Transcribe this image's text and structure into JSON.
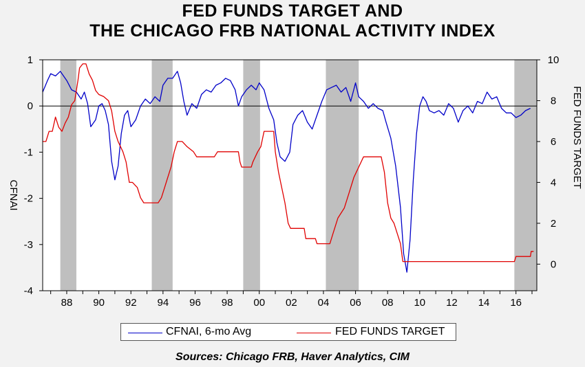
{
  "title_line1": "FED FUNDS TARGET AND",
  "title_line2": "THE CHICAGO FRB NATIONAL ACTIVITY INDEX",
  "source": "Sources:  Chicago FRB, Haver Analytics, CIM",
  "colors": {
    "cfnai": "#0000c8",
    "fedfunds": "#e00000",
    "recession": "#bfbfbf",
    "background": "#f2f2f2",
    "plot": "#ffffff"
  },
  "chart_data": {
    "type": "line",
    "x_tick_labels": [
      "88",
      "90",
      "92",
      "94",
      "96",
      "98",
      "00",
      "02",
      "04",
      "06",
      "08",
      "10",
      "12",
      "14",
      "16"
    ],
    "x_tick_years": [
      1988,
      1990,
      1992,
      1994,
      1996,
      1998,
      2000,
      2002,
      2004,
      2006,
      2008,
      2010,
      2012,
      2014,
      2016
    ],
    "xlim": [
      1986.5,
      2017.3
    ],
    "left_axis": {
      "label": "CFNAI",
      "ticks": [
        1,
        0,
        -1,
        -2,
        -3,
        -4
      ],
      "range": [
        -4,
        1.0
      ]
    },
    "right_axis": {
      "label": "FED FUNDS TARGET",
      "ticks": [
        10,
        8,
        6,
        4,
        2,
        0
      ],
      "range": [
        -1.3,
        10
      ]
    },
    "recessions": [
      [
        1987.6,
        1988.6
      ],
      [
        1993.3,
        1994.6
      ],
      [
        1999.0,
        2000.05
      ],
      [
        2004.15,
        2006.2
      ],
      [
        2015.9,
        2017.3
      ]
    ],
    "zero_line": true,
    "legend_position": "bottom",
    "series": [
      {
        "name": "CFNAI, 6-mo Avg",
        "axis": "left",
        "points": [
          [
            1986.5,
            0.3
          ],
          [
            1986.8,
            0.55
          ],
          [
            1987.0,
            0.7
          ],
          [
            1987.3,
            0.65
          ],
          [
            1987.6,
            0.75
          ],
          [
            1988.0,
            0.55
          ],
          [
            1988.3,
            0.35
          ],
          [
            1988.6,
            0.3
          ],
          [
            1988.9,
            0.15
          ],
          [
            1989.1,
            0.3
          ],
          [
            1989.3,
            0.05
          ],
          [
            1989.5,
            -0.45
          ],
          [
            1989.8,
            -0.3
          ],
          [
            1990.0,
            0.0
          ],
          [
            1990.2,
            0.05
          ],
          [
            1990.4,
            -0.1
          ],
          [
            1990.6,
            -0.4
          ],
          [
            1990.8,
            -1.2
          ],
          [
            1991.0,
            -1.6
          ],
          [
            1991.2,
            -1.3
          ],
          [
            1991.4,
            -0.6
          ],
          [
            1991.6,
            -0.2
          ],
          [
            1991.8,
            -0.1
          ],
          [
            1992.0,
            -0.45
          ],
          [
            1992.3,
            -0.3
          ],
          [
            1992.6,
            0.0
          ],
          [
            1992.9,
            0.15
          ],
          [
            1993.2,
            0.05
          ],
          [
            1993.5,
            0.2
          ],
          [
            1993.8,
            0.1
          ],
          [
            1994.0,
            0.45
          ],
          [
            1994.3,
            0.6
          ],
          [
            1994.6,
            0.6
          ],
          [
            1994.9,
            0.75
          ],
          [
            1995.1,
            0.5
          ],
          [
            1995.3,
            0.1
          ],
          [
            1995.5,
            -0.2
          ],
          [
            1995.8,
            0.05
          ],
          [
            1996.1,
            -0.05
          ],
          [
            1996.4,
            0.25
          ],
          [
            1996.7,
            0.35
          ],
          [
            1997.0,
            0.3
          ],
          [
            1997.3,
            0.45
          ],
          [
            1997.6,
            0.5
          ],
          [
            1997.9,
            0.6
          ],
          [
            1998.2,
            0.55
          ],
          [
            1998.5,
            0.35
          ],
          [
            1998.7,
            0.0
          ],
          [
            1998.9,
            0.2
          ],
          [
            1999.2,
            0.35
          ],
          [
            1999.5,
            0.45
          ],
          [
            1999.8,
            0.35
          ],
          [
            2000.0,
            0.5
          ],
          [
            2000.3,
            0.35
          ],
          [
            2000.6,
            -0.05
          ],
          [
            2000.9,
            -0.3
          ],
          [
            2001.1,
            -0.8
          ],
          [
            2001.3,
            -1.1
          ],
          [
            2001.6,
            -1.2
          ],
          [
            2001.9,
            -1.0
          ],
          [
            2002.1,
            -0.4
          ],
          [
            2002.4,
            -0.2
          ],
          [
            2002.7,
            -0.1
          ],
          [
            2003.0,
            -0.35
          ],
          [
            2003.3,
            -0.5
          ],
          [
            2003.6,
            -0.2
          ],
          [
            2003.9,
            0.1
          ],
          [
            2004.2,
            0.35
          ],
          [
            2004.5,
            0.4
          ],
          [
            2004.8,
            0.45
          ],
          [
            2005.1,
            0.3
          ],
          [
            2005.4,
            0.4
          ],
          [
            2005.7,
            0.1
          ],
          [
            2006.0,
            0.5
          ],
          [
            2006.2,
            0.2
          ],
          [
            2006.5,
            0.1
          ],
          [
            2006.8,
            -0.05
          ],
          [
            2007.1,
            0.05
          ],
          [
            2007.4,
            -0.05
          ],
          [
            2007.7,
            -0.1
          ],
          [
            2007.9,
            -0.35
          ],
          [
            2008.2,
            -0.7
          ],
          [
            2008.5,
            -1.3
          ],
          [
            2008.8,
            -2.2
          ],
          [
            2009.0,
            -3.2
          ],
          [
            2009.2,
            -3.6
          ],
          [
            2009.4,
            -2.9
          ],
          [
            2009.6,
            -1.6
          ],
          [
            2009.8,
            -0.6
          ],
          [
            2010.0,
            0.0
          ],
          [
            2010.2,
            0.2
          ],
          [
            2010.4,
            0.1
          ],
          [
            2010.6,
            -0.1
          ],
          [
            2010.9,
            -0.15
          ],
          [
            2011.2,
            -0.1
          ],
          [
            2011.5,
            -0.2
          ],
          [
            2011.8,
            0.05
          ],
          [
            2012.1,
            -0.05
          ],
          [
            2012.4,
            -0.35
          ],
          [
            2012.7,
            -0.1
          ],
          [
            2013.0,
            0.0
          ],
          [
            2013.3,
            -0.15
          ],
          [
            2013.6,
            0.1
          ],
          [
            2013.9,
            0.05
          ],
          [
            2014.2,
            0.3
          ],
          [
            2014.5,
            0.15
          ],
          [
            2014.8,
            0.2
          ],
          [
            2015.1,
            -0.05
          ],
          [
            2015.4,
            -0.15
          ],
          [
            2015.7,
            -0.15
          ],
          [
            2016.0,
            -0.25
          ],
          [
            2016.3,
            -0.2
          ],
          [
            2016.6,
            -0.1
          ],
          [
            2016.9,
            -0.05
          ]
        ]
      },
      {
        "name": "FED FUNDS TARGET",
        "axis": "right",
        "points": [
          [
            1986.5,
            6.0
          ],
          [
            1986.7,
            6.0
          ],
          [
            1986.9,
            6.5
          ],
          [
            1987.1,
            6.5
          ],
          [
            1987.3,
            7.2
          ],
          [
            1987.5,
            6.7
          ],
          [
            1987.7,
            6.5
          ],
          [
            1987.9,
            6.9
          ],
          [
            1988.1,
            7.2
          ],
          [
            1988.3,
            7.8
          ],
          [
            1988.5,
            8.0
          ],
          [
            1988.7,
            9.0
          ],
          [
            1988.8,
            9.6
          ],
          [
            1989.0,
            9.8
          ],
          [
            1989.2,
            9.8
          ],
          [
            1989.4,
            9.3
          ],
          [
            1989.6,
            9.0
          ],
          [
            1989.8,
            8.5
          ],
          [
            1990.0,
            8.3
          ],
          [
            1990.3,
            8.2
          ],
          [
            1990.6,
            8.0
          ],
          [
            1990.8,
            7.5
          ],
          [
            1991.0,
            6.5
          ],
          [
            1991.2,
            6.0
          ],
          [
            1991.5,
            5.5
          ],
          [
            1991.7,
            5.0
          ],
          [
            1991.9,
            4.0
          ],
          [
            1992.1,
            4.0
          ],
          [
            1992.4,
            3.75
          ],
          [
            1992.6,
            3.25
          ],
          [
            1992.8,
            3.0
          ],
          [
            1993.5,
            3.0
          ],
          [
            1993.7,
            3.0
          ],
          [
            1993.9,
            3.25
          ],
          [
            1994.1,
            3.75
          ],
          [
            1994.3,
            4.25
          ],
          [
            1994.5,
            4.75
          ],
          [
            1994.7,
            5.5
          ],
          [
            1994.9,
            6.0
          ],
          [
            1995.2,
            6.0
          ],
          [
            1995.5,
            5.75
          ],
          [
            1995.9,
            5.5
          ],
          [
            1996.1,
            5.25
          ],
          [
            1997.2,
            5.25
          ],
          [
            1997.4,
            5.5
          ],
          [
            1998.7,
            5.5
          ],
          [
            1998.8,
            5.0
          ],
          [
            1998.9,
            4.75
          ],
          [
            1999.5,
            4.75
          ],
          [
            1999.6,
            5.0
          ],
          [
            1999.9,
            5.5
          ],
          [
            2000.1,
            5.75
          ],
          [
            2000.3,
            6.5
          ],
          [
            2000.9,
            6.5
          ],
          [
            2001.0,
            5.5
          ],
          [
            2001.2,
            4.5
          ],
          [
            2001.4,
            3.75
          ],
          [
            2001.6,
            3.0
          ],
          [
            2001.8,
            2.0
          ],
          [
            2001.95,
            1.75
          ],
          [
            2002.8,
            1.75
          ],
          [
            2002.9,
            1.25
          ],
          [
            2003.5,
            1.25
          ],
          [
            2003.6,
            1.0
          ],
          [
            2004.4,
            1.0
          ],
          [
            2004.6,
            1.5
          ],
          [
            2004.9,
            2.25
          ],
          [
            2005.3,
            2.75
          ],
          [
            2005.6,
            3.5
          ],
          [
            2005.9,
            4.25
          ],
          [
            2006.2,
            4.75
          ],
          [
            2006.5,
            5.25
          ],
          [
            2007.6,
            5.25
          ],
          [
            2007.8,
            4.5
          ],
          [
            2008.0,
            3.0
          ],
          [
            2008.2,
            2.25
          ],
          [
            2008.4,
            2.0
          ],
          [
            2008.8,
            1.0
          ],
          [
            2008.95,
            0.125
          ],
          [
            2015.9,
            0.125
          ],
          [
            2016.0,
            0.375
          ],
          [
            2016.9,
            0.375
          ],
          [
            2016.95,
            0.625
          ],
          [
            2017.1,
            0.625
          ]
        ]
      }
    ]
  }
}
